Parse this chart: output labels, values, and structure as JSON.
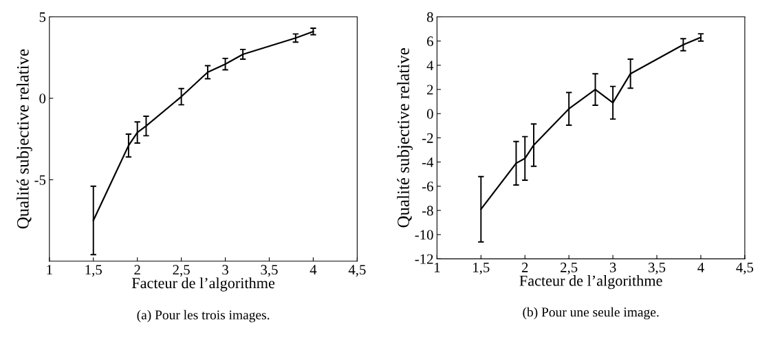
{
  "chart_data": [
    {
      "type": "line",
      "xlabel": "Facteur de l’algorithme",
      "ylabel": "Qualité subjective relative",
      "x": [
        1.5,
        1.9,
        2.0,
        2.1,
        2.5,
        2.8,
        3.0,
        3.2,
        3.8,
        4.0
      ],
      "series": [
        {
          "color": "#000000",
          "values": [
            -7.5,
            -2.9,
            -2.1,
            -1.7,
            0.1,
            1.6,
            2.1,
            2.7,
            3.7,
            4.1
          ],
          "errors": [
            2.1,
            0.7,
            0.65,
            0.6,
            0.5,
            0.4,
            0.35,
            0.3,
            0.25,
            0.2
          ]
        }
      ],
      "xlim": [
        1,
        4.5
      ],
      "xticks": [
        {
          "value": 1,
          "label": "1"
        },
        {
          "value": 1.5,
          "label": "1,5"
        },
        {
          "value": 2,
          "label": "2"
        },
        {
          "value": 2.5,
          "label": "2,5"
        },
        {
          "value": 3,
          "label": "3"
        },
        {
          "value": 3.5,
          "label": "3,5"
        },
        {
          "value": 4,
          "label": "4"
        },
        {
          "value": 4.5,
          "label": "4,5"
        }
      ],
      "ylim": [
        -10,
        5
      ],
      "yticks": [
        -5,
        0,
        5
      ],
      "annotations": [
        "(a) Pour les trois images."
      ],
      "grid": false,
      "legend": false,
      "marker": "none",
      "line_style": "solid"
    },
    {
      "type": "line",
      "xlabel": "Facteur de l’algorithme",
      "ylabel": "Qualité subjective relative",
      "x": [
        1.5,
        1.9,
        2.0,
        2.1,
        2.5,
        2.8,
        3.0,
        3.2,
        3.8,
        4.0
      ],
      "series": [
        {
          "color": "#000000",
          "values": [
            -7.9,
            -4.1,
            -3.7,
            -2.6,
            0.4,
            2.0,
            0.9,
            3.3,
            5.7,
            6.3
          ],
          "errors": [
            2.7,
            1.8,
            1.8,
            1.75,
            1.35,
            1.3,
            1.35,
            1.2,
            0.5,
            0.3
          ]
        }
      ],
      "xlim": [
        1,
        4.5
      ],
      "xticks": [
        {
          "value": 1,
          "label": "1"
        },
        {
          "value": 1.5,
          "label": "1,5"
        },
        {
          "value": 2,
          "label": "2"
        },
        {
          "value": 2.5,
          "label": "2,5"
        },
        {
          "value": 3,
          "label": "3"
        },
        {
          "value": 3.5,
          "label": "3,5"
        },
        {
          "value": 4,
          "label": "4"
        },
        {
          "value": 4.5,
          "label": "4,5"
        }
      ],
      "ylim": [
        -12,
        8
      ],
      "yticks": [
        -12,
        -10,
        -8,
        -6,
        -4,
        -2,
        0,
        2,
        4,
        6,
        8
      ],
      "annotations": [
        "(b) Pour une seule image."
      ],
      "grid": false,
      "legend": false,
      "marker": "none",
      "line_style": "solid"
    }
  ]
}
